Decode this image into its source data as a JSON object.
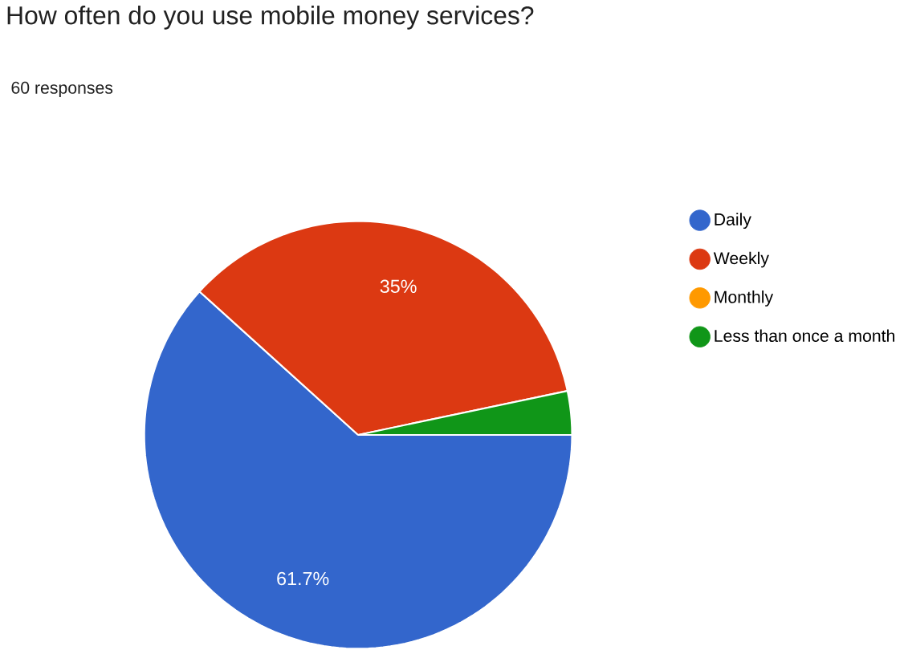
{
  "chart_data": {
    "type": "pie",
    "title": "How often do you use mobile money services?",
    "subtitle": "60 responses",
    "categories": [
      "Daily",
      "Weekly",
      "Monthly",
      "Less than once a month"
    ],
    "values": [
      61.7,
      35,
      0,
      3.3
    ],
    "colors": [
      "#3366cc",
      "#dc3912",
      "#ff9900",
      "#109618"
    ],
    "value_labels": [
      "61.7%",
      "35%",
      null,
      null
    ],
    "legend": "right"
  }
}
